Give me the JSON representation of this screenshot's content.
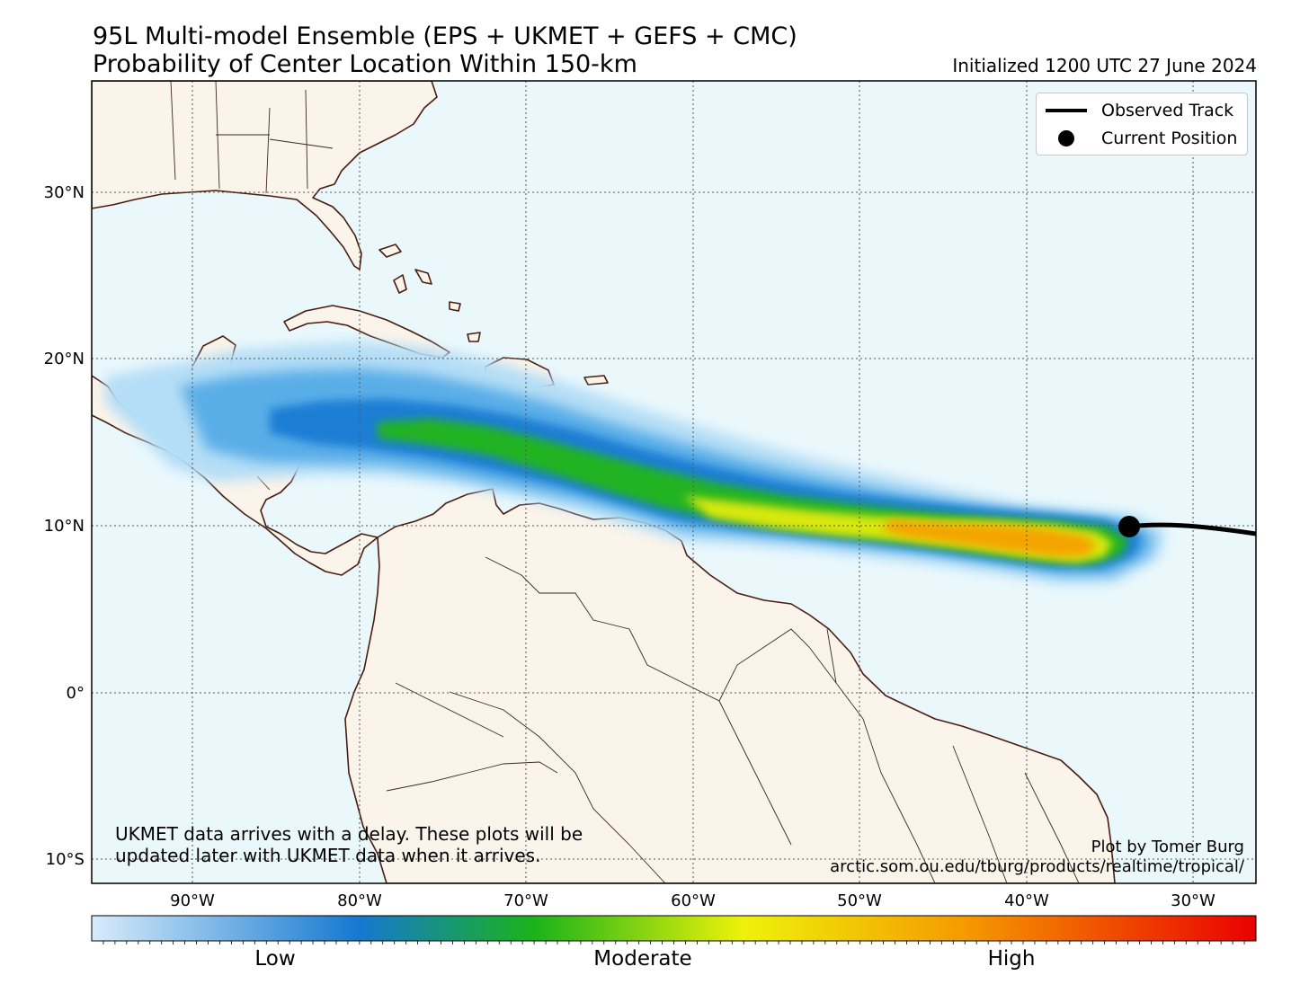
{
  "title_line1": "95L Multi-model Ensemble (EPS + UKMET + GEFS + CMC)",
  "title_line2": "Probability of Center Location Within 150-km",
  "initialized": "Initialized 1200 UTC 27 June 2024",
  "legend": {
    "observed_track": "Observed Track",
    "current_position": "Current Position"
  },
  "note_line1": "UKMET data arrives with a delay. These plots will be",
  "note_line2": "updated later with UKMET data when it arrives.",
  "credit_line1": "Plot by Tomer Burg",
  "credit_line2": "arctic.som.ou.edu/tburg/products/realtime/tropical/",
  "lat_labels": [
    "30°N",
    "20°N",
    "10°N",
    "0°",
    "10°S"
  ],
  "lon_labels": [
    "90°W",
    "80°W",
    "70°W",
    "60°W",
    "50°W",
    "40°W",
    "30°W"
  ],
  "colorbar_labels": {
    "low": "Low",
    "moderate": "Moderate",
    "high": "High"
  },
  "colors": {
    "ocean": "#eaf8fc",
    "land": "#fbf4ea",
    "coast": "#4a1c10",
    "track": "#000000"
  },
  "current_position": {
    "lon": -34,
    "lat": 9.9
  }
}
